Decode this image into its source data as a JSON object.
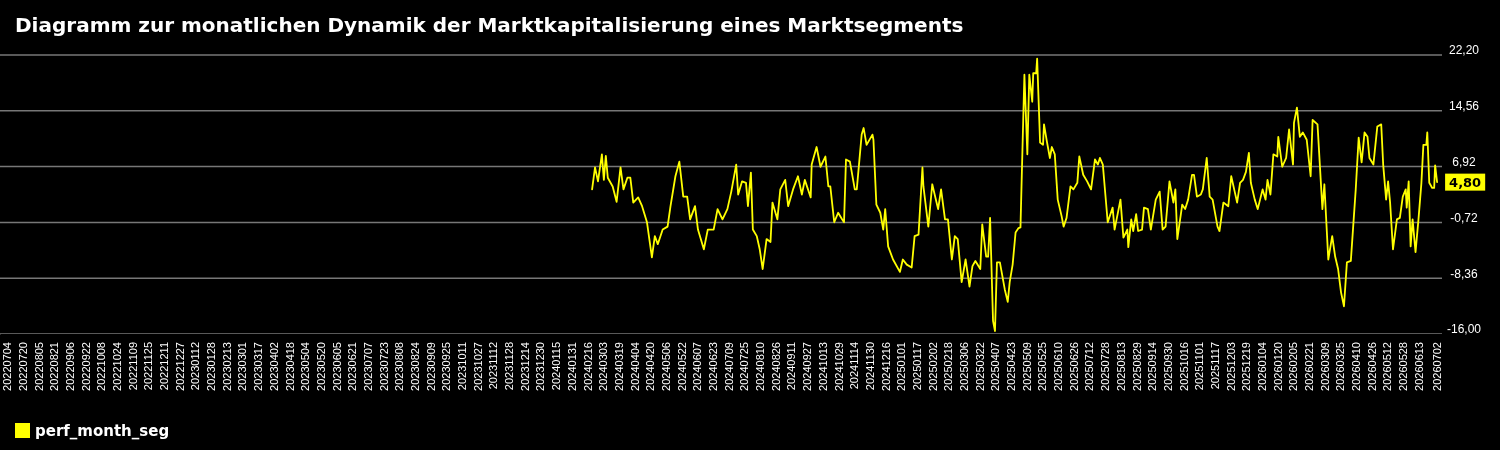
{
  "chart_data": {
    "type": "line",
    "title": "Diagramm zur monatlichen Dynamik der Marktkapitalisierung eines Marktsegments",
    "x": [
      "2024-02-21",
      "2024-02-24",
      "2024-02-27",
      "2024-03-02",
      "2024-03-04",
      "2024-03-06",
      "2024-03-08",
      "2024-03-13",
      "2024-03-17",
      "2024-03-21",
      "2024-03-24",
      "2024-03-28",
      "2024-03-31",
      "2024-04-03",
      "2024-04-08",
      "2024-04-12",
      "2024-04-17",
      "2024-04-22",
      "2024-04-25",
      "2024-04-28",
      "2024-05-03",
      "2024-05-08",
      "2024-05-11",
      "2024-05-16",
      "2024-05-20",
      "2024-05-24",
      "2024-05-28",
      "2024-05-31",
      "2024-06-05",
      "2024-06-08",
      "2024-06-14",
      "2024-06-18",
      "2024-06-24",
      "2024-06-28",
      "2024-07-03",
      "2024-07-08",
      "2024-07-12",
      "2024-07-17",
      "2024-07-19",
      "2024-07-23",
      "2024-07-27",
      "2024-07-29",
      "2024-08-01",
      "2024-08-03",
      "2024-08-07",
      "2024-08-10",
      "2024-08-13",
      "2024-08-17",
      "2024-08-21",
      "2024-08-23",
      "2024-08-28",
      "2024-08-31",
      "2024-09-05",
      "2024-09-08",
      "2024-09-13",
      "2024-09-18",
      "2024-09-22",
      "2024-09-25",
      "2024-10-01",
      "2024-10-02",
      "2024-10-07",
      "2024-10-11",
      "2024-10-16",
      "2024-10-19",
      "2024-10-21",
      "2024-10-25",
      "2024-10-29",
      "2024-11-02",
      "2024-11-04",
      "2024-11-06",
      "2024-11-10",
      "2024-11-15",
      "2024-11-17",
      "2024-11-22",
      "2024-11-24",
      "2024-11-27",
      "2024-12-03",
      "2024-12-04",
      "2024-12-07",
      "2024-12-11",
      "2024-12-14",
      "2024-12-16",
      "2024-12-19",
      "2024-12-24",
      "2024-12-31",
      "2025-01-03",
      "2025-01-07",
      "2025-01-12",
      "2025-01-15",
      "2025-01-19",
      "2025-01-23",
      "2025-01-24",
      "2025-01-29",
      "2025-02-02",
      "2025-02-05",
      "2025-02-08",
      "2025-02-11",
      "2025-02-15",
      "2025-02-18",
      "2025-02-22",
      "2025-02-25",
      "2025-02-28",
      "2025-03-04",
      "2025-03-08",
      "2025-03-12",
      "2025-03-15",
      "2025-03-18",
      "2025-03-23",
      "2025-03-25",
      "2025-03-29",
      "2025-03-31",
      "2025-04-02",
      "2025-04-05",
      "2025-04-07",
      "2025-04-09",
      "2025-04-12",
      "2025-04-17",
      "2025-04-20",
      "2025-04-22",
      "2025-04-25",
      "2025-04-28",
      "2025-05-01",
      "2025-05-03",
      "2025-05-05",
      "2025-05-07",
      "2025-05-10",
      "2025-05-12",
      "2025-05-15",
      "2025-05-16",
      "2025-05-19",
      "2025-05-20",
      "2025-05-23",
      "2025-05-26",
      "2025-05-27",
      "2025-05-30",
      "2025-06-02",
      "2025-06-04",
      "2025-06-07",
      "2025-06-10",
      "2025-06-14",
      "2025-06-16",
      "2025-06-19",
      "2025-06-23",
      "2025-06-26",
      "2025-06-30",
      "2025-07-02",
      "2025-07-06",
      "2025-07-10",
      "2025-07-14",
      "2025-07-18",
      "2025-07-21",
      "2025-07-23",
      "2025-07-26",
      "2025-07-31",
      "2025-08-05",
      "2025-08-07",
      "2025-08-13",
      "2025-08-16",
      "2025-08-20",
      "2025-08-21",
      "2025-08-24",
      "2025-08-26",
      "2025-08-29",
      "2025-08-31",
      "2025-09-04",
      "2025-09-06",
      "2025-09-10",
      "2025-09-13",
      "2025-09-18",
      "2025-09-22",
      "2025-09-25",
      "2025-09-28",
      "2025-10-02",
      "2025-10-06",
      "2025-10-08",
      "2025-10-10",
      "2025-10-15",
      "2025-10-18",
      "2025-10-21",
      "2025-10-25",
      "2025-10-27",
      "2025-10-30",
      "2025-11-03",
      "2025-11-05",
      "2025-11-09",
      "2025-11-12",
      "2025-11-15",
      "2025-11-20",
      "2025-11-22",
      "2025-11-26",
      "2025-12-01",
      "2025-12-04",
      "2025-12-07",
      "2025-12-10",
      "2025-12-13",
      "2025-12-16",
      "2025-12-19",
      "2025-12-22",
      "2025-12-24",
      "2025-12-28",
      "2025-12-31",
      "2026-01-05",
      "2026-01-08",
      "2026-01-10",
      "2026-01-13",
      "2026-01-16",
      "2026-01-20",
      "2026-01-21",
      "2026-01-25",
      "2026-01-29",
      "2026-02-01",
      "2026-02-05",
      "2026-02-06",
      "2026-02-09",
      "2026-02-12",
      "2026-02-15",
      "2026-02-19",
      "2026-02-23",
      "2026-02-25",
      "2026-03-02",
      "2026-03-07",
      "2026-03-09",
      "2026-03-13",
      "2026-03-17",
      "2026-03-20",
      "2026-03-23",
      "2026-03-26",
      "2026-03-29",
      "2026-04-01",
      "2026-04-05",
      "2026-04-10",
      "2026-04-13",
      "2026-04-16",
      "2026-04-19",
      "2026-04-22",
      "2026-04-24",
      "2026-04-28",
      "2026-05-02",
      "2026-05-06",
      "2026-05-08",
      "2026-05-11",
      "2026-05-13",
      "2026-05-15",
      "2026-05-18",
      "2026-05-22",
      "2026-05-25",
      "2026-05-28",
      "2026-05-31",
      "2026-06-01",
      "2026-06-03",
      "2026-06-05",
      "2026-06-07",
      "2026-06-10",
      "2026-06-13",
      "2026-06-16",
      "2026-06-18",
      "2026-06-21",
      "2026-06-22",
      "2026-06-24",
      "2026-06-27",
      "2026-06-29",
      "2026-06-30",
      "2026-07-02"
    ],
    "series": [
      {
        "name": "perf_month_seg",
        "color": "#ffff00",
        "values": [
          3.8,
          6.8,
          4.9,
          8.6,
          5.1,
          8.4,
          5.4,
          4.2,
          2.1,
          6.8,
          3.8,
          5.4,
          5.4,
          2.0,
          2.7,
          1.5,
          -0.7,
          -5.5,
          -2.6,
          -3.7,
          -1.7,
          -1.3,
          1.5,
          5.6,
          7.6,
          2.8,
          2.8,
          -0.3,
          1.5,
          -1.7,
          -4.4,
          -1.7,
          -1.7,
          1.1,
          -0.3,
          1.1,
          3.5,
          7.2,
          3.1,
          4.9,
          4.7,
          1.5,
          6.1,
          -1.7,
          -2.6,
          -4.4,
          -7.1,
          -3.0,
          -3.4,
          2.0,
          -0.3,
          3.8,
          5.1,
          1.5,
          3.8,
          5.6,
          3.1,
          5.1,
          2.7,
          7.2,
          9.6,
          6.9,
          8.3,
          4.2,
          4.2,
          -0.7,
          0.6,
          -0.3,
          -0.7,
          7.9,
          7.6,
          3.8,
          3.8,
          11.3,
          12.2,
          9.9,
          11.3,
          10.6,
          1.7,
          0.6,
          -1.7,
          1.1,
          -4.0,
          -5.8,
          -7.5,
          -5.8,
          -6.5,
          -6.9,
          -2.6,
          -2.4,
          6.8,
          4.2,
          -1.3,
          4.5,
          2.8,
          1.1,
          3.8,
          -0.3,
          -0.3,
          -5.8,
          -2.6,
          -3.0,
          -8.9,
          -5.8,
          -9.5,
          -6.7,
          -6.0,
          -7.1,
          -1.0,
          -5.4,
          -5.4,
          -0.1,
          -14.2,
          -15.6,
          -6.2,
          -6.2,
          -9.9,
          -11.6,
          -8.9,
          -6.5,
          -2.1,
          -1.5,
          -1.4,
          9.2,
          19.5,
          8.6,
          19.5,
          15.8,
          19.7,
          19.7,
          21.7,
          10.2,
          9.9,
          12.7,
          10.3,
          8.1,
          9.6,
          8.6,
          2.4,
          0.1,
          -1.3,
          -0.1,
          4.2,
          3.8,
          4.7,
          8.3,
          5.8,
          4.9,
          3.8,
          7.9,
          7.2,
          8.1,
          7.2,
          -0.7,
          1.3,
          -1.7,
          2.4,
          -2.8,
          -1.7,
          -4.1,
          -0.3,
          -1.9,
          0.4,
          -1.9,
          -1.7,
          1.3,
          1.1,
          -1.7,
          2.4,
          3.5,
          -1.7,
          -1.3,
          4.9,
          2.0,
          3.8,
          -3.0,
          1.7,
          1.1,
          2.4,
          5.8,
          5.8,
          2.8,
          3.1,
          3.8,
          8.1,
          2.8,
          2.4,
          -1.3,
          -1.9,
          2.0,
          1.5,
          5.6,
          3.8,
          2.0,
          4.7,
          5.1,
          6.2,
          8.8,
          4.7,
          2.4,
          1.1,
          3.8,
          2.4,
          5.1,
          3.1,
          8.6,
          8.3,
          11.0,
          6.9,
          8.1,
          12.0,
          7.2,
          12.9,
          15.0,
          11.0,
          11.6,
          10.6,
          5.6,
          13.3,
          12.7,
          1.1,
          4.5,
          -5.8,
          -2.6,
          -5.4,
          -7.1,
          -10.3,
          -12.2,
          -6.2,
          -6.0,
          3.8,
          10.9,
          7.5,
          11.6,
          11.0,
          8.1,
          7.2,
          12.4,
          12.7,
          7.2,
          2.4,
          4.9,
          2.1,
          -4.4,
          -0.3,
          -0.1,
          2.8,
          3.8,
          1.3,
          4.9,
          -4.0,
          -0.3,
          -4.8,
          -0.3,
          4.7,
          9.9,
          9.9,
          11.6,
          4.7,
          4.0,
          4.0,
          7.1,
          4.8
        ]
      }
    ],
    "xlim": [
      "2022-06-27",
      "2026-07-07"
    ],
    "xticks": [
      {
        "value": "2022-07-04",
        "label": "20220704"
      },
      {
        "value": "2022-07-20",
        "label": "20220720"
      },
      {
        "value": "2022-08-05",
        "label": "20220805"
      },
      {
        "value": "2022-08-21",
        "label": "20220821"
      },
      {
        "value": "2022-09-06",
        "label": "20220906"
      },
      {
        "value": "2022-09-22",
        "label": "20220922"
      },
      {
        "value": "2022-10-08",
        "label": "20221008"
      },
      {
        "value": "2022-10-24",
        "label": "20221024"
      },
      {
        "value": "2022-11-09",
        "label": "20221109"
      },
      {
        "value": "2022-11-25",
        "label": "20221125"
      },
      {
        "value": "2022-12-11",
        "label": "20221211"
      },
      {
        "value": "2022-12-27",
        "label": "20221227"
      },
      {
        "value": "2023-01-12",
        "label": "20230112"
      },
      {
        "value": "2023-01-28",
        "label": "20230128"
      },
      {
        "value": "2023-02-13",
        "label": "20230213"
      },
      {
        "value": "2023-03-01",
        "label": "20230301"
      },
      {
        "value": "2023-03-17",
        "label": "20230317"
      },
      {
        "value": "2023-04-02",
        "label": "20230402"
      },
      {
        "value": "2023-04-18",
        "label": "20230418"
      },
      {
        "value": "2023-05-04",
        "label": "20230504"
      },
      {
        "value": "2023-05-20",
        "label": "20230520"
      },
      {
        "value": "2023-06-05",
        "label": "20230605"
      },
      {
        "value": "2023-06-21",
        "label": "20230621"
      },
      {
        "value": "2023-07-07",
        "label": "20230707"
      },
      {
        "value": "2023-07-23",
        "label": "20230723"
      },
      {
        "value": "2023-08-08",
        "label": "20230808"
      },
      {
        "value": "2023-08-24",
        "label": "20230824"
      },
      {
        "value": "2023-09-09",
        "label": "20230909"
      },
      {
        "value": "2023-09-25",
        "label": "20230925"
      },
      {
        "value": "2023-10-11",
        "label": "20231011"
      },
      {
        "value": "2023-10-27",
        "label": "20231027"
      },
      {
        "value": "2023-11-12",
        "label": "20231112"
      },
      {
        "value": "2023-11-28",
        "label": "20231128"
      },
      {
        "value": "2023-12-14",
        "label": "20231214"
      },
      {
        "value": "2023-12-30",
        "label": "20231230"
      },
      {
        "value": "2024-01-15",
        "label": "20240115"
      },
      {
        "value": "2024-01-31",
        "label": "20240131"
      },
      {
        "value": "2024-02-16",
        "label": "20240216"
      },
      {
        "value": "2024-03-03",
        "label": "20240303"
      },
      {
        "value": "2024-03-19",
        "label": "20240319"
      },
      {
        "value": "2024-04-04",
        "label": "20240404"
      },
      {
        "value": "2024-04-20",
        "label": "20240420"
      },
      {
        "value": "2024-05-06",
        "label": "20240506"
      },
      {
        "value": "2024-05-22",
        "label": "20240522"
      },
      {
        "value": "2024-06-07",
        "label": "20240607"
      },
      {
        "value": "2024-06-23",
        "label": "20240623"
      },
      {
        "value": "2024-07-09",
        "label": "20240709"
      },
      {
        "value": "2024-07-25",
        "label": "20240725"
      },
      {
        "value": "2024-08-10",
        "label": "20240810"
      },
      {
        "value": "2024-08-26",
        "label": "20240826"
      },
      {
        "value": "2024-09-11",
        "label": "20240911"
      },
      {
        "value": "2024-09-27",
        "label": "20240927"
      },
      {
        "value": "2024-10-13",
        "label": "20241013"
      },
      {
        "value": "2024-10-29",
        "label": "20241029"
      },
      {
        "value": "2024-11-14",
        "label": "20241114"
      },
      {
        "value": "2024-11-30",
        "label": "20241130"
      },
      {
        "value": "2024-12-16",
        "label": "20241216"
      },
      {
        "value": "2025-01-01",
        "label": "20250101"
      },
      {
        "value": "2025-01-17",
        "label": "20250117"
      },
      {
        "value": "2025-02-02",
        "label": "20250202"
      },
      {
        "value": "2025-02-18",
        "label": "20250218"
      },
      {
        "value": "2025-03-06",
        "label": "20250306"
      },
      {
        "value": "2025-03-22",
        "label": "20250322"
      },
      {
        "value": "2025-04-07",
        "label": "20250407"
      },
      {
        "value": "2025-04-23",
        "label": "20250423"
      },
      {
        "value": "2025-05-09",
        "label": "20250509"
      },
      {
        "value": "2025-05-25",
        "label": "20250525"
      },
      {
        "value": "2025-06-10",
        "label": "20250610"
      },
      {
        "value": "2025-06-26",
        "label": "20250626"
      },
      {
        "value": "2025-07-12",
        "label": "20250712"
      },
      {
        "value": "2025-07-28",
        "label": "20250728"
      },
      {
        "value": "2025-08-13",
        "label": "20250813"
      },
      {
        "value": "2025-08-29",
        "label": "20250829"
      },
      {
        "value": "2025-09-14",
        "label": "20250914"
      },
      {
        "value": "2025-09-30",
        "label": "20250930"
      },
      {
        "value": "2025-10-16",
        "label": "20251016"
      },
      {
        "value": "2025-11-01",
        "label": "20251101"
      },
      {
        "value": "2025-11-17",
        "label": "20251117"
      },
      {
        "value": "2025-12-03",
        "label": "20251203"
      },
      {
        "value": "2025-12-19",
        "label": "20251219"
      },
      {
        "value": "2026-01-04",
        "label": "20260104"
      },
      {
        "value": "2026-01-20",
        "label": "20260120"
      },
      {
        "value": "2026-02-05",
        "label": "20260205"
      },
      {
        "value": "2026-02-21",
        "label": "20260221"
      },
      {
        "value": "2026-03-09",
        "label": "20260309"
      },
      {
        "value": "2026-03-25",
        "label": "20260325"
      },
      {
        "value": "2026-04-10",
        "label": "20260410"
      },
      {
        "value": "2026-04-26",
        "label": "20260426"
      },
      {
        "value": "2026-05-12",
        "label": "20260512"
      },
      {
        "value": "2026-05-28",
        "label": "20260528"
      },
      {
        "value": "2026-06-13",
        "label": "20260613"
      },
      {
        "value": "2026-07-02",
        "label": "20260702"
      }
    ],
    "ylim": [
      -16,
      22.2
    ],
    "yticks": [
      {
        "value": -16,
        "label": "-16,00"
      },
      {
        "value": -8.36,
        "label": "-8,36"
      },
      {
        "value": -0.72,
        "label": "-0,72"
      },
      {
        "value": 6.92,
        "label": "6,92"
      },
      {
        "value": 14.56,
        "label": "14,56"
      },
      {
        "value": 22.2,
        "label": "22,20"
      }
    ],
    "grid": "y",
    "legend": "bottom left",
    "annotations": [
      {
        "text": "4,80",
        "x": "2026-07-02",
        "y": 4.8
      }
    ]
  }
}
